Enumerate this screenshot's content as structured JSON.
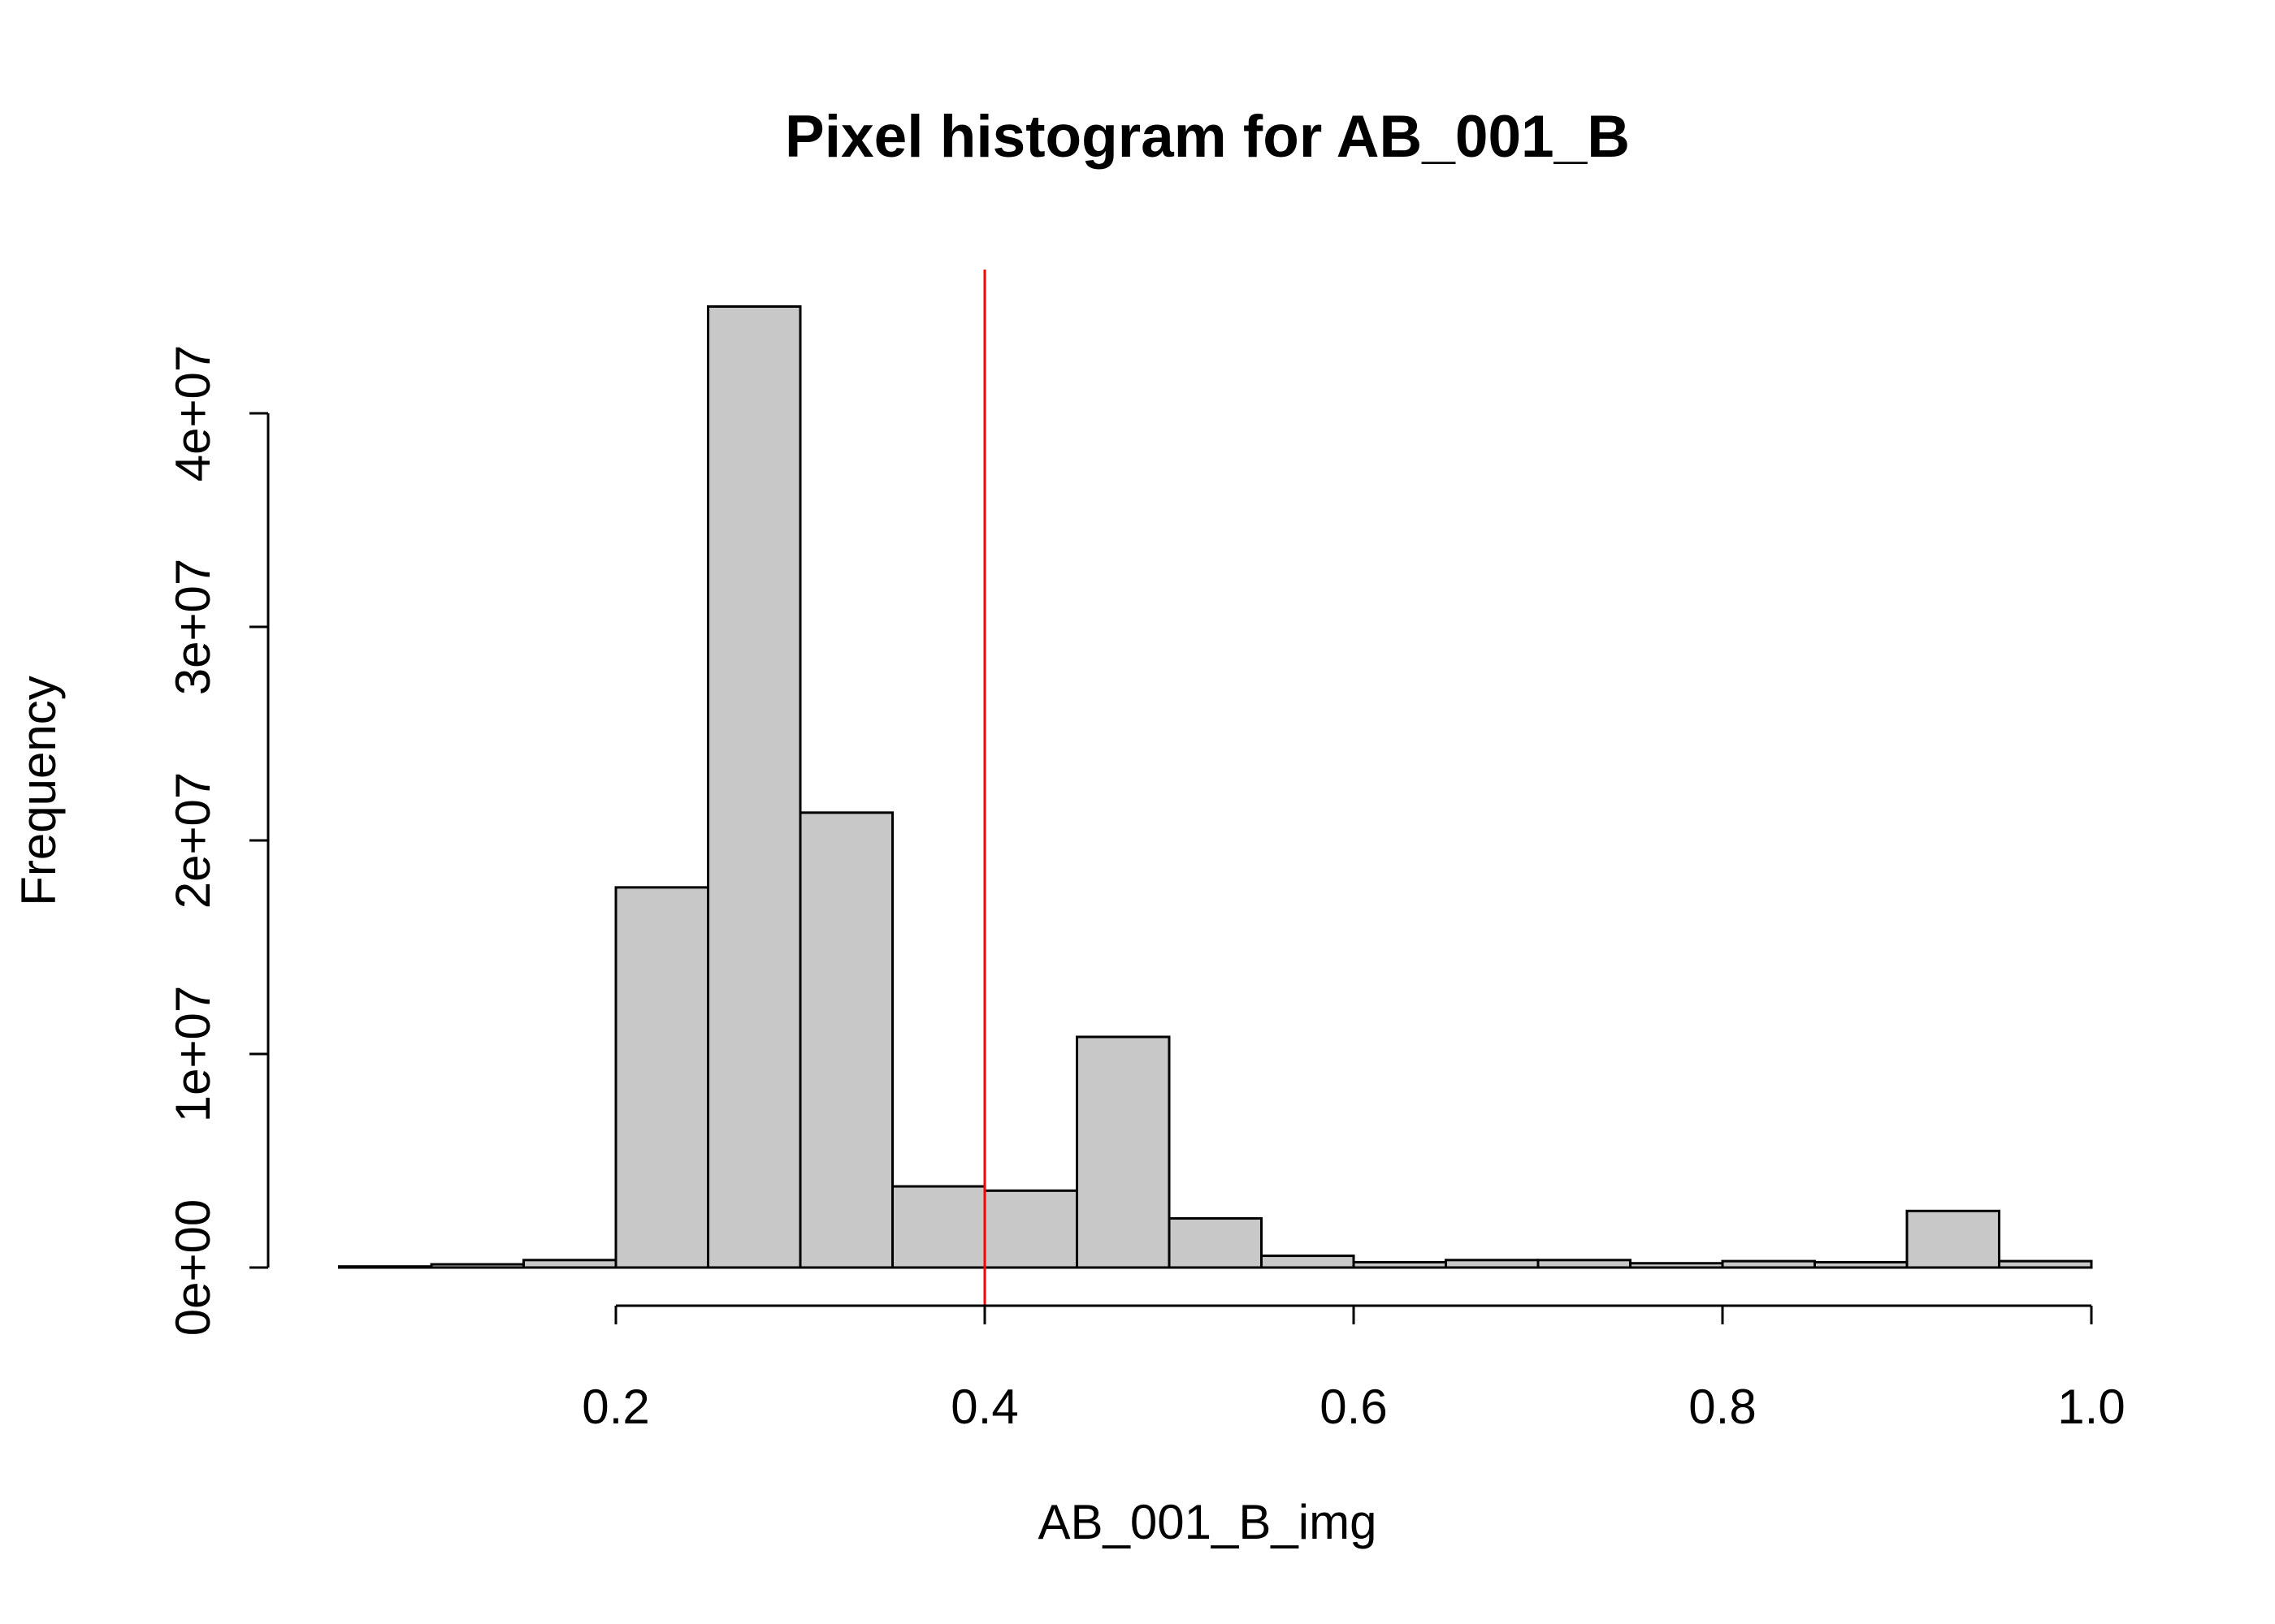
{
  "chart_data": {
    "type": "bar",
    "title": "Pixel histogram for AB_001_B",
    "xlabel": "AB_001_B_img",
    "ylabel": "Frequency",
    "bin_width": 0.05,
    "bins": [
      {
        "start": 0.05,
        "end": 0.1,
        "count": 50000
      },
      {
        "start": 0.1,
        "end": 0.15,
        "count": 150000
      },
      {
        "start": 0.15,
        "end": 0.2,
        "count": 350000
      },
      {
        "start": 0.2,
        "end": 0.25,
        "count": 17800000
      },
      {
        "start": 0.25,
        "end": 0.3,
        "count": 45000000
      },
      {
        "start": 0.3,
        "end": 0.35,
        "count": 21300000
      },
      {
        "start": 0.35,
        "end": 0.4,
        "count": 3800000
      },
      {
        "start": 0.4,
        "end": 0.45,
        "count": 3600000
      },
      {
        "start": 0.45,
        "end": 0.5,
        "count": 10800000
      },
      {
        "start": 0.5,
        "end": 0.55,
        "count": 2300000
      },
      {
        "start": 0.55,
        "end": 0.6,
        "count": 550000
      },
      {
        "start": 0.6,
        "end": 0.65,
        "count": 250000
      },
      {
        "start": 0.65,
        "end": 0.7,
        "count": 350000
      },
      {
        "start": 0.7,
        "end": 0.75,
        "count": 350000
      },
      {
        "start": 0.75,
        "end": 0.8,
        "count": 200000
      },
      {
        "start": 0.8,
        "end": 0.85,
        "count": 300000
      },
      {
        "start": 0.85,
        "end": 0.9,
        "count": 250000
      },
      {
        "start": 0.9,
        "end": 0.95,
        "count": 2650000
      },
      {
        "start": 0.95,
        "end": 1.0,
        "count": 300000
      }
    ],
    "xlim": [
      0.05,
      1.0
    ],
    "ylim": [
      0,
      46000000
    ],
    "x_ticks": [
      0.2,
      0.4,
      0.6,
      0.8,
      1.0
    ],
    "x_tick_labels": [
      "0.2",
      "0.4",
      "0.6",
      "0.8",
      "1.0"
    ],
    "y_ticks": [
      0,
      10000000,
      20000000,
      30000000,
      40000000
    ],
    "y_tick_labels": [
      "0e+00",
      "1e+07",
      "2e+07",
      "3e+07",
      "4e+07"
    ],
    "reference_line": {
      "x": 0.4,
      "color": "#ff0000"
    },
    "bar_color": "#c8c8c8",
    "grid": false
  }
}
